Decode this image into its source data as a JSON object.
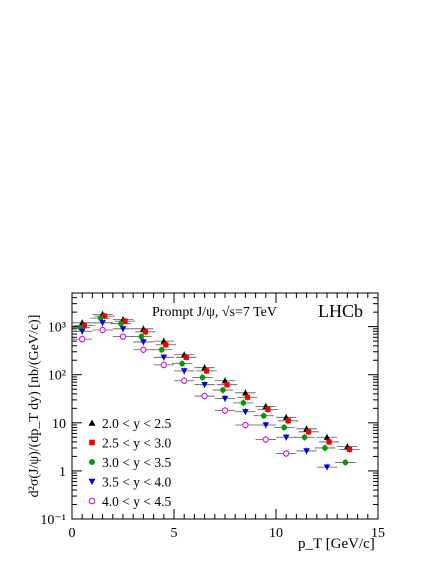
{
  "chart_data": {
    "type": "scatter",
    "annotation_main": "Prompt J/ψ, √s=7 TeV",
    "annotation_experiment": "LHCb",
    "xlabel": "p_T [GeV/c]",
    "ylabel": "d²σ(J/ψ)/(dp_T dy) [nb/(GeV/c)]",
    "xlim": [
      0,
      15
    ],
    "ylim": [
      0.1,
      5000
    ],
    "yscale": "log",
    "x_ticks": [
      "0",
      "5",
      "10",
      "15"
    ],
    "y_ticks": [
      "10⁻¹",
      "1",
      "10",
      "10²",
      "10³"
    ],
    "legend_position": "bottom-left",
    "series": [
      {
        "name": "2.0 < y < 2.5",
        "color": "#000000",
        "marker": "triangle-up",
        "x": [
          0.5,
          1.5,
          2.5,
          3.5,
          4.5,
          5.5,
          6.5,
          7.5,
          8.5,
          9.5,
          10.5,
          11.5,
          12.5,
          13.5
        ],
        "y": [
          1200,
          1800,
          1400,
          900,
          500,
          260,
          140,
          75,
          42,
          22,
          13,
          7.5,
          5,
          3.2
        ]
      },
      {
        "name": "2.5 < y < 3.0",
        "color": "#ee0000",
        "marker": "square",
        "x": [
          0.6,
          1.6,
          2.6,
          3.6,
          4.6,
          5.6,
          6.6,
          7.6,
          8.6,
          9.6,
          10.6,
          11.6,
          12.6,
          13.6
        ],
        "y": [
          1050,
          1650,
          1300,
          780,
          420,
          230,
          120,
          62,
          34,
          19,
          11,
          6.5,
          4,
          2.8
        ]
      },
      {
        "name": "3.0 < y < 3.5",
        "color": "#009900",
        "marker": "circle",
        "x": [
          0.4,
          1.4,
          2.4,
          3.4,
          4.4,
          5.4,
          6.4,
          7.4,
          8.4,
          9.4,
          10.4,
          11.4,
          12.4,
          13.4
        ],
        "y": [
          950,
          1500,
          1150,
          620,
          330,
          170,
          88,
          48,
          26,
          14,
          8,
          5,
          3,
          1.5
        ]
      },
      {
        "name": "3.5 < y < 4.0",
        "color": "#0000dd",
        "marker": "triangle-down",
        "x": [
          0.5,
          1.5,
          2.5,
          3.5,
          4.5,
          5.5,
          6.5,
          7.5,
          8.5,
          9.5,
          10.5,
          11.5,
          12.5
        ],
        "y": [
          800,
          1200,
          900,
          480,
          230,
          120,
          62,
          32,
          17,
          9,
          5,
          2.6,
          1.2
        ]
      },
      {
        "name": "4.0 < y < 4.5",
        "color": "#dd00dd",
        "marker": "open-circle",
        "x": [
          0.5,
          1.5,
          2.5,
          3.5,
          4.5,
          5.5,
          6.5,
          7.5,
          8.5,
          9.5,
          10.5
        ],
        "y": [
          550,
          850,
          620,
          330,
          160,
          75,
          36,
          18,
          9,
          4.5,
          2.3
        ]
      }
    ]
  }
}
